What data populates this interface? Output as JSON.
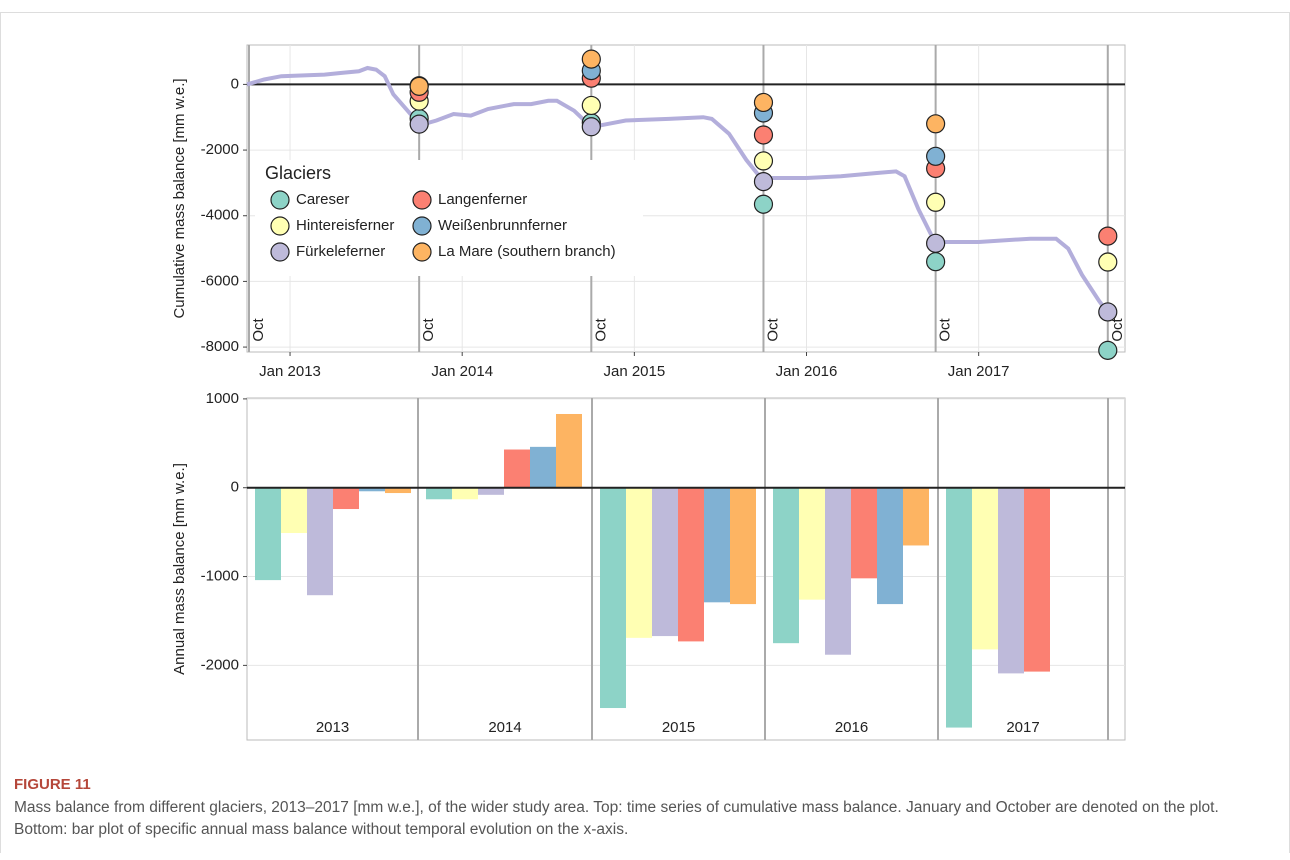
{
  "chart_data": [
    {
      "type": "line",
      "ylabel": "Cumulative mass balance [mm w.e.]",
      "xlim": [
        2012.75,
        2017.85
      ],
      "ylim": [
        -8150,
        1200
      ],
      "xticks": [
        {
          "value": 2013,
          "label": "Jan 2013"
        },
        {
          "value": 2014,
          "label": "Jan 2014"
        },
        {
          "value": 2015,
          "label": "Jan 2015"
        },
        {
          "value": 2016,
          "label": "Jan 2016"
        },
        {
          "value": 2017,
          "label": "Jan 2017"
        }
      ],
      "yticks": [
        -8000,
        -6000,
        -4000,
        -2000,
        0
      ],
      "vlines": [
        {
          "value": 2012.75,
          "label": "Oct"
        },
        {
          "value": 2013.75,
          "label": "Oct"
        },
        {
          "value": 2014.75,
          "label": "Oct"
        },
        {
          "value": 2015.75,
          "label": "Oct"
        },
        {
          "value": 2016.75,
          "label": "Oct"
        },
        {
          "value": 2017.75,
          "label": "Oct"
        }
      ],
      "grid": true,
      "line": {
        "color": "#b3aedb",
        "x": [
          2012.75,
          2012.85,
          2012.95,
          2013.1,
          2013.2,
          2013.3,
          2013.4,
          2013.45,
          2013.5,
          2013.55,
          2013.6,
          2013.7,
          2013.75,
          2013.85,
          2013.95,
          2014.05,
          2014.15,
          2014.3,
          2014.4,
          2014.5,
          2014.55,
          2014.65,
          2014.75,
          2014.85,
          2014.95,
          2015.2,
          2015.4,
          2015.45,
          2015.55,
          2015.65,
          2015.75,
          2015.8,
          2016.0,
          2016.2,
          2016.4,
          2016.52,
          2016.57,
          2016.65,
          2016.75,
          2016.8,
          2017.0,
          2017.3,
          2017.45,
          2017.52,
          2017.6,
          2017.7,
          2017.75
        ],
        "values": [
          0,
          150,
          250,
          280,
          300,
          350,
          400,
          500,
          450,
          250,
          -300,
          -900,
          -1250,
          -1100,
          -900,
          -950,
          -750,
          -600,
          -600,
          -500,
          -500,
          -800,
          -1300,
          -1200,
          -1100,
          -1050,
          -1000,
          -1050,
          -1500,
          -2300,
          -2950,
          -2850,
          -2850,
          -2800,
          -2700,
          -2650,
          -2800,
          -3800,
          -4850,
          -4800,
          -4800,
          -4700,
          -4700,
          -5000,
          -5800,
          -6600,
          -6950
        ]
      },
      "legend_title": "Glaciers",
      "legend_position": "center-left",
      "points": {
        "x": [
          2013.75,
          2014.75,
          2015.75,
          2016.75,
          2017.75
        ],
        "series": [
          {
            "name": "Careser",
            "color": "#8dd3c7",
            "values": [
              -1040,
              -1170,
              -3650,
              -5400,
              -8100
            ]
          },
          {
            "name": "Hintereisferner",
            "color": "#ffffb3",
            "values": [
              -510,
              -640,
              -2330,
              -3590,
              -5410
            ]
          },
          {
            "name": "Fürkeleferner",
            "color": "#bebada",
            "values": [
              -1210,
              -1290,
              -2960,
              -4840,
              -6930
            ]
          },
          {
            "name": "Langenferner",
            "color": "#fb8072",
            "values": [
              -240,
              190,
              -1540,
              -2560,
              -4620
            ]
          },
          {
            "name": "Weißenbrunnferner",
            "color": "#80b1d3",
            "values": [
              -40,
              420,
              -870,
              -2190,
              null
            ]
          },
          {
            "name": "La Mare (southern branch)",
            "color": "#fdb462",
            "values": [
              -60,
              770,
              -550,
              -1200,
              null
            ]
          }
        ]
      }
    },
    {
      "type": "bar",
      "ylabel": "Annual mass balance [mm w.e.]",
      "ylim": [
        -2840,
        1010
      ],
      "yticks": [
        -2000,
        -1000,
        0,
        1000
      ],
      "grid": true,
      "categories": [
        "2013",
        "2014",
        "2015",
        "2016",
        "2017"
      ],
      "series": [
        {
          "color": "#8dd3c7",
          "values": [
            -1040,
            -130,
            -2480,
            -1750,
            -2700
          ]
        },
        {
          "color": "#ffffb3",
          "values": [
            -510,
            -130,
            -1690,
            -1260,
            -1820
          ]
        },
        {
          "color": "#bebada",
          "values": [
            -1210,
            -80,
            -1670,
            -1880,
            -2090
          ]
        },
        {
          "color": "#fb8072",
          "values": [
            -240,
            430,
            -1730,
            -1020,
            -2070
          ]
        },
        {
          "color": "#80b1d3",
          "values": [
            -40,
            460,
            -1290,
            -1310,
            null
          ]
        },
        {
          "color": "#fdb462",
          "values": [
            -60,
            830,
            -1310,
            -650,
            null
          ]
        }
      ]
    }
  ],
  "figure": {
    "label": "FIGURE 11",
    "caption": "Mass balance from different glaciers, 2013–2017 [mm w.e.], of the wider study area. Top: time series of cumulative mass balance. January and October are denoted on the plot. Bottom: bar plot of specific annual mass balance without temporal evolution on the x-axis."
  }
}
